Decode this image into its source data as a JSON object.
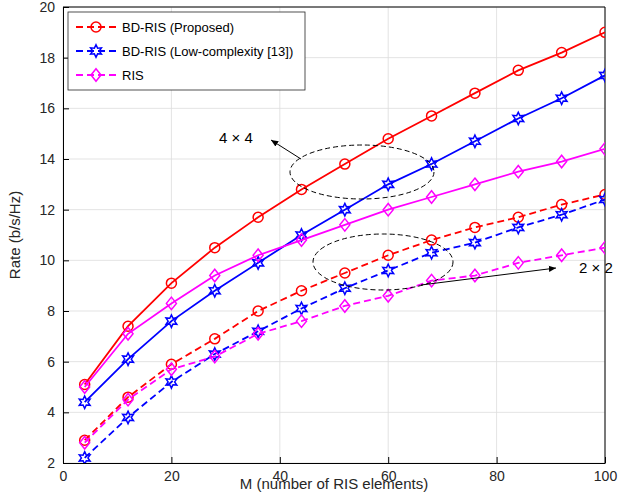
{
  "chart_data": {
    "type": "line",
    "x_label": "M (number of RIS elements)",
    "y_label": "Rate (b/s/Hz)",
    "x": [
      4,
      12,
      20,
      28,
      36,
      44,
      52,
      60,
      68,
      76,
      84,
      92,
      100
    ],
    "xlim": [
      0,
      100
    ],
    "xticks": [
      0,
      20,
      40,
      60,
      80,
      100
    ],
    "ylim": [
      2,
      20
    ],
    "yticks": [
      2,
      4,
      6,
      8,
      10,
      12,
      14,
      16,
      18,
      20
    ],
    "grid": true,
    "legend": "upper left",
    "annotations": [
      {
        "text": "4 × 4"
      },
      {
        "text": "2 × 2"
      }
    ],
    "series": [
      {
        "name": "BD-RIS (Proposed)",
        "color": "#ff0000",
        "marker": "circle",
        "line_style": "dashed",
        "values": [
          2.9,
          4.6,
          5.9,
          6.9,
          8.0,
          8.8,
          9.5,
          10.2,
          10.8,
          11.3,
          11.7,
          12.2,
          12.6
        ]
      },
      {
        "name": "BD-RIS (Low-complexity [13])",
        "color": "#0000ff",
        "marker": "hexagram",
        "line_style": "dashed",
        "values": [
          2.2,
          3.8,
          5.2,
          6.3,
          7.2,
          8.1,
          8.9,
          9.6,
          10.3,
          10.7,
          11.3,
          11.8,
          12.4
        ]
      },
      {
        "name": "RIS",
        "color": "#ff00ff",
        "marker": "diamond",
        "line_style": "dashed",
        "values": [
          2.8,
          4.5,
          5.7,
          6.2,
          7.1,
          7.6,
          8.2,
          8.6,
          9.2,
          9.4,
          9.9,
          10.2,
          10.5
        ]
      },
      {
        "name": "BD-RIS (Proposed)",
        "color": "#ff0000",
        "marker": "circle",
        "line_style": "solid",
        "values": [
          5.1,
          7.4,
          9.1,
          10.5,
          11.7,
          12.8,
          13.8,
          14.8,
          15.7,
          16.6,
          17.5,
          18.2,
          19.0
        ]
      },
      {
        "name": "BD-RIS (Low-complexity [13])",
        "color": "#0000ff",
        "marker": "hexagram",
        "line_style": "solid",
        "values": [
          4.4,
          6.1,
          7.6,
          8.8,
          9.9,
          11.0,
          12.0,
          13.0,
          13.8,
          14.7,
          15.6,
          16.4,
          17.3
        ]
      },
      {
        "name": "RIS",
        "color": "#ff00ff",
        "marker": "diamond",
        "line_style": "solid",
        "values": [
          5.0,
          7.1,
          8.3,
          9.4,
          10.2,
          10.8,
          11.4,
          12.0,
          12.5,
          13.0,
          13.5,
          13.9,
          14.4
        ]
      }
    ]
  }
}
